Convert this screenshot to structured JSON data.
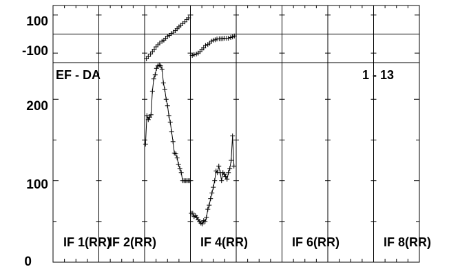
{
  "chart_data": {
    "type": "line",
    "title": "",
    "baseline_label": "EF - DA",
    "range_label": "1 - 13",
    "panels": [
      "IF 1(RR)",
      "IF 2(RR)",
      "IF 4(RR)",
      "IF 6(RR)",
      "IF 8(RR)"
    ],
    "phase_plot": {
      "ylim": [
        -150,
        150
      ],
      "yticks": [
        100,
        -100
      ],
      "reference_line": 0,
      "series": [
        {
          "x": [
            0.04,
            0.08,
            0.13,
            0.17,
            0.21,
            0.25,
            0.29,
            0.33,
            0.38,
            0.42,
            0.46,
            0.5,
            0.54,
            0.58,
            0.63,
            0.67,
            0.71,
            0.75,
            0.79,
            0.83,
            0.88,
            0.92,
            0.96
          ],
          "y": [
            -130,
            -118,
            -105,
            -93,
            -80,
            -67,
            -56,
            -47,
            -38,
            -32,
            -22,
            -13,
            -7,
            3,
            10,
            18,
            28,
            38,
            46,
            55,
            64,
            76,
            85
          ]
        },
        {
          "x": [
            0.04,
            0.08,
            0.13,
            0.17,
            0.21,
            0.25,
            0.29,
            0.33,
            0.38,
            0.42,
            0.46,
            0.5,
            0.54,
            0.58,
            0.63,
            0.67,
            0.71,
            0.75,
            0.79,
            0.83,
            0.88,
            0.92,
            0.96
          ],
          "y": [
            -112,
            -108,
            -105,
            -100,
            -92,
            -80,
            -73,
            -60,
            -55,
            -48,
            -38,
            -32,
            -30,
            -26,
            -25,
            -25,
            -24,
            -22,
            -22,
            -22,
            -18,
            -15,
            -10
          ]
        }
      ]
    },
    "amplitude_plot": {
      "ylim": [
        0,
        245
      ],
      "yticks": [
        200,
        100,
        0
      ],
      "series": [
        {
          "x": [
            0.02,
            0.05,
            0.08,
            0.11,
            0.14,
            0.17,
            0.2,
            0.23,
            0.26,
            0.29,
            0.32,
            0.35,
            0.38,
            0.41,
            0.44,
            0.47,
            0.5,
            0.53,
            0.56,
            0.59,
            0.62,
            0.65,
            0.68,
            0.71,
            0.74,
            0.77,
            0.8,
            0.83,
            0.86,
            0.89,
            0.92,
            0.95,
            0.98
          ],
          "y": [
            145,
            180,
            175,
            178,
            181,
            210,
            225,
            230,
            238,
            241,
            242,
            241,
            237,
            220,
            212,
            200,
            192,
            180,
            172,
            160,
            148,
            134,
            133,
            128,
            120,
            115,
            110,
            100,
            100,
            100,
            100,
            100,
            100
          ]
        },
        {
          "x": [
            0.02,
            0.05,
            0.08,
            0.11,
            0.14,
            0.17,
            0.2,
            0.23,
            0.26,
            0.29,
            0.32,
            0.35,
            0.38,
            0.41,
            0.44,
            0.47,
            0.5,
            0.53,
            0.56,
            0.59,
            0.62,
            0.65,
            0.68,
            0.71,
            0.74,
            0.77,
            0.8,
            0.83,
            0.86,
            0.89,
            0.92,
            0.95
          ],
          "y": [
            60,
            60,
            56,
            57,
            55,
            52,
            50,
            48,
            47,
            51,
            50,
            55,
            65,
            70,
            78,
            85,
            92,
            100,
            112,
            110,
            118,
            110,
            100,
            110,
            108,
            105,
            102,
            110,
            115,
            125,
            155,
            118
          ]
        }
      ]
    }
  }
}
